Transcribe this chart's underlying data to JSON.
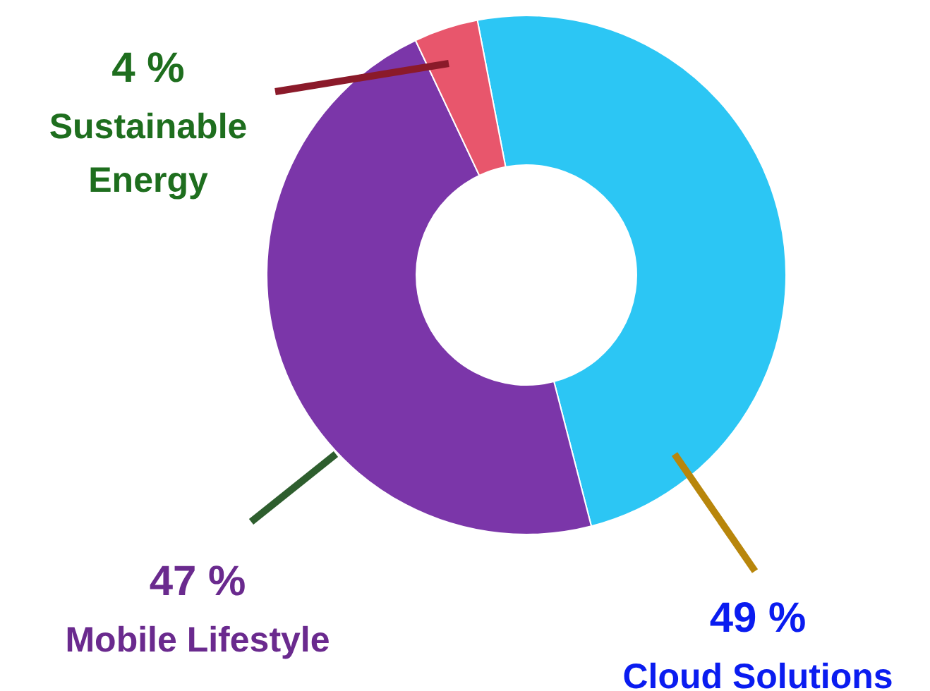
{
  "chart_data": {
    "type": "donut",
    "categories": [
      "Cloud Solutions",
      "Mobile Lifestyle",
      "Sustainable Energy"
    ],
    "values": [
      49,
      47,
      4
    ],
    "colors": [
      "#2cc6f4",
      "#7b36a9",
      "#e8566c"
    ],
    "value_labels": [
      "49 %",
      "47 %",
      "4 %"
    ]
  }
}
